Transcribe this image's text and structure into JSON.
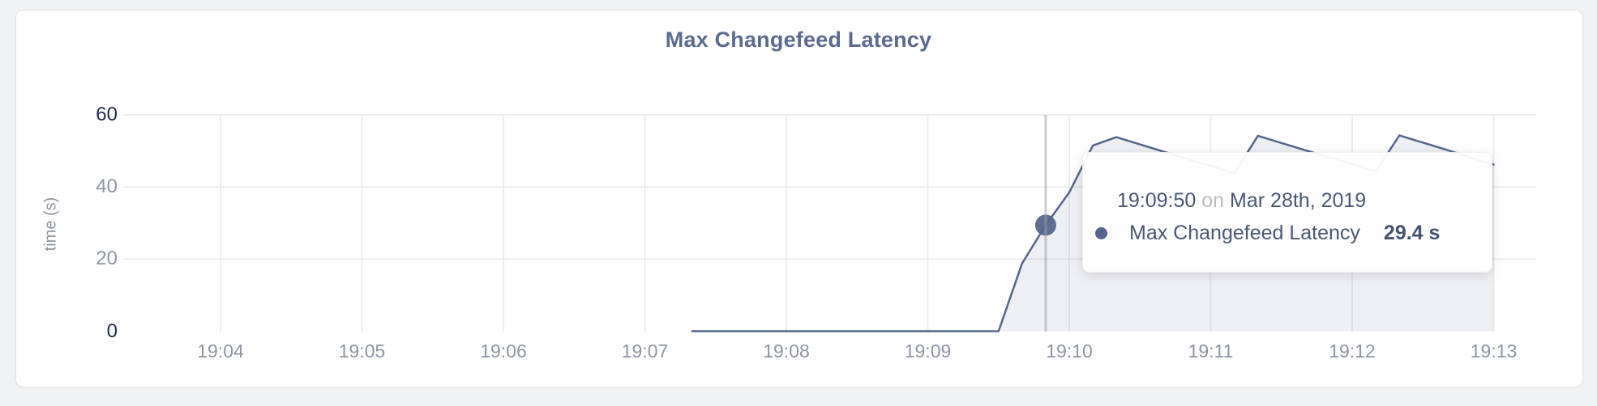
{
  "chart": {
    "title": "Max Changefeed Latency",
    "ylabel": "time (s)",
    "chart_data": {
      "type": "area",
      "title": "Max Changefeed Latency",
      "xlabel": "",
      "ylabel": "time (s)",
      "ylim": [
        0,
        60
      ],
      "grid": true,
      "x_tick_labels": [
        "19:04",
        "19:05",
        "19:06",
        "19:07",
        "19:08",
        "19:09",
        "19:10",
        "19:11",
        "19:12",
        "19:13"
      ],
      "y_ticks": [
        {
          "value": 0,
          "label": "0",
          "emphasis": true
        },
        {
          "value": 20,
          "label": "20",
          "emphasis": false
        },
        {
          "value": 40,
          "label": "40",
          "emphasis": false
        },
        {
          "value": 60,
          "label": "60",
          "emphasis": true
        }
      ],
      "series": [
        {
          "name": "Max Changefeed Latency",
          "points": [
            [
              "19:07:20",
              0
            ],
            [
              "19:07:30",
              0
            ],
            [
              "19:07:40",
              0
            ],
            [
              "19:07:50",
              0
            ],
            [
              "19:08:00",
              0
            ],
            [
              "19:08:10",
              0
            ],
            [
              "19:08:20",
              0
            ],
            [
              "19:08:30",
              0
            ],
            [
              "19:08:40",
              0
            ],
            [
              "19:08:50",
              0
            ],
            [
              "19:09:00",
              0
            ],
            [
              "19:09:10",
              0
            ],
            [
              "19:09:20",
              0
            ],
            [
              "19:09:30",
              0
            ],
            [
              "19:09:40",
              18.8
            ],
            [
              "19:09:50",
              29.4
            ],
            [
              "19:10:00",
              38.5
            ],
            [
              "19:10:10",
              51.5
            ],
            [
              "19:10:20",
              53.8
            ],
            [
              "19:10:30",
              51.8
            ],
            [
              "19:10:40",
              49.8
            ],
            [
              "19:10:50",
              47.8
            ],
            [
              "19:11:00",
              45.8
            ],
            [
              "19:11:10",
              43.8
            ],
            [
              "19:11:20",
              54.2
            ],
            [
              "19:11:30",
              52.2
            ],
            [
              "19:11:40",
              50.2
            ],
            [
              "19:11:50",
              48.3
            ],
            [
              "19:12:00",
              46.3
            ],
            [
              "19:12:10",
              44.3
            ],
            [
              "19:12:20",
              54.3
            ],
            [
              "19:12:30",
              52.3
            ],
            [
              "19:12:40",
              50.3
            ],
            [
              "19:12:50",
              48.2
            ],
            [
              "19:13:00",
              46.2
            ]
          ]
        }
      ],
      "highlight_point": {
        "time": "19:09:50",
        "value": 29.4
      }
    }
  },
  "tooltip": {
    "time": "19:09:50",
    "connector": "on",
    "date": "Mar 28th, 2019",
    "series_label": "Max Changefeed Latency",
    "value": "29.4 s"
  },
  "colors": {
    "line": "#55658b",
    "area_fill": "rgba(85,101,139,0.10)",
    "grid": "#ecedef",
    "crosshair": "rgba(160,163,170,0.55)",
    "tick_gray": "#8c94a3",
    "tick_dark": "#1d2b4e",
    "title": "#5b6b8f",
    "tooltip_text": "#475872",
    "tooltip_muted": "#b9bcc3",
    "page_bg": "#f1f2f3",
    "card_bg": "#ffffff"
  }
}
